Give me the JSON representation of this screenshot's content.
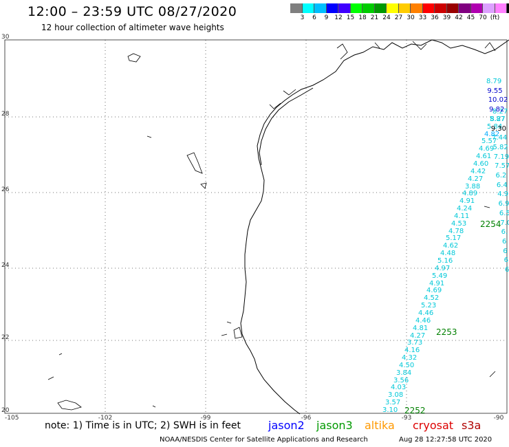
{
  "title": "12:00 – 23:59 UTC 08/27/2020",
  "subtitle": "12 hour collection of altimeter wave heights",
  "colorbar": {
    "colors": [
      "#7f7f7f",
      "#00ffff",
      "#00bfff",
      "#0000ff",
      "#3f00ff",
      "#00ff00",
      "#00cc00",
      "#009900",
      "#ffff00",
      "#ffcc00",
      "#ff8000",
      "#ff0000",
      "#cc0000",
      "#990000",
      "#800080",
      "#b000b0",
      "#dda0ff",
      "#ff80ff",
      "#000000"
    ],
    "labels": [
      "3",
      "6",
      "9",
      "12",
      "15",
      "18",
      "21",
      "24",
      "27",
      "30",
      "33",
      "36",
      "39",
      "42",
      "45",
      "70",
      "(ft)"
    ]
  },
  "axes": {
    "y_ticks": [
      "30",
      "28",
      "26",
      "24",
      "22",
      "20"
    ],
    "x_ticks": [
      "-105",
      "-102",
      "-99",
      "-96",
      "-93",
      "-90"
    ]
  },
  "track_labels": [
    {
      "text": "2252",
      "color": "#008000"
    },
    {
      "text": "2253",
      "color": "#008000"
    },
    {
      "text": "2254",
      "color": "#008000"
    }
  ],
  "swh_track_1": [
    "3.10",
    "3.57",
    "3.08",
    "4.03",
    "3.56",
    "3.84",
    "4.50",
    "4.32",
    "4.16",
    "3.73",
    "4.27",
    "4.81",
    "4.46",
    "4.46",
    "5.23",
    "4.52",
    "4.69",
    "4.91",
    "5.49",
    "4.97",
    "5.16",
    "4.48",
    "4.62",
    "5.17",
    "4.78",
    "4.53",
    "4.11",
    "4.24",
    "4.91",
    "4.89",
    "3.88",
    "4.27",
    "4.42",
    "4.60",
    "4.61",
    "4.69",
    "5.57",
    "4.82",
    "5.84",
    "5.87",
    "8.27"
  ],
  "swh_track_1_colors": {
    "4.82": "#00aaff"
  },
  "swh_track_2": [
    "8.79",
    "9.55",
    "10.02",
    "9.82",
    "8.27",
    "9.30",
    "7.44",
    "5.82",
    "7.19",
    "7.57",
    "6.2",
    "6.4",
    "4.9",
    "6.9",
    "6.5",
    "7.0",
    "6.",
    "6",
    "6",
    "6",
    "6"
  ],
  "swh_track_2_colors": {
    "9.55": "#0000cc",
    "10.02": "#0000cc",
    "9.82": "#0000cc",
    "9.30": "#000000"
  },
  "note": "note: 1) Time is in UTC; 2) SWH is in feet",
  "legend": [
    {
      "name": "jason2",
      "color": "#0000ff"
    },
    {
      "name": "jason3",
      "color": "#009900"
    },
    {
      "name": "altika",
      "color": "#ff9900"
    },
    {
      "name": "cryosat",
      "color": "#dd0000"
    },
    {
      "name": "s3a",
      "color": "#b00000"
    }
  ],
  "footer": "NOAA/NESDIS Center for Satellite Applications and Research",
  "timestamp": "Aug 28 12:27:58 UTC 2020"
}
